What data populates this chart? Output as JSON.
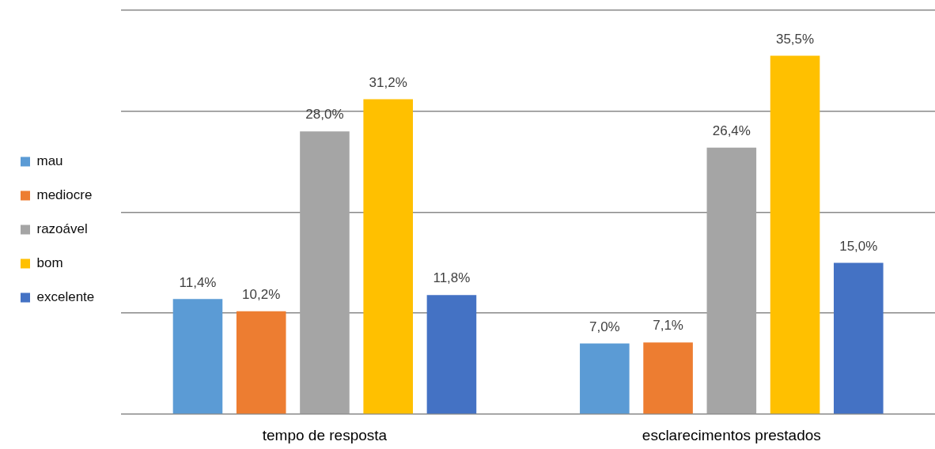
{
  "chart_data": {
    "type": "bar",
    "categories": [
      "tempo de resposta",
      "esclarecimentos prestados"
    ],
    "series": [
      {
        "name": "mau",
        "color": "#5b9bd5",
        "values": [
          11.4,
          7.0
        ],
        "value_labels": [
          "11,4%",
          "7,0%"
        ]
      },
      {
        "name": "mediocre",
        "color": "#ed7d31",
        "values": [
          10.2,
          7.1
        ],
        "value_labels": [
          "10,2%",
          "7,1%"
        ]
      },
      {
        "name": "razoável",
        "color": "#a5a5a5",
        "values": [
          28.0,
          26.4
        ],
        "value_labels": [
          "28,0%",
          "26,4%"
        ]
      },
      {
        "name": "bom",
        "color": "#ffc000",
        "values": [
          31.2,
          35.5
        ],
        "value_labels": [
          "31,2%",
          "35,5%"
        ]
      },
      {
        "name": "excelente",
        "color": "#4472c4",
        "values": [
          11.8,
          15.0
        ],
        "value_labels": [
          "11,8%",
          "15,0%"
        ]
      }
    ],
    "ylim": [
      0,
      40
    ],
    "yticks": [
      {
        "value": 0,
        "label": null
      },
      {
        "value": 10,
        "label": null
      },
      {
        "value": 20,
        "label": null
      },
      {
        "value": 30,
        "label": null
      },
      {
        "value": 40,
        "label": null
      }
    ],
    "grid": "y",
    "legend": "left",
    "tick_labels": "x"
  }
}
